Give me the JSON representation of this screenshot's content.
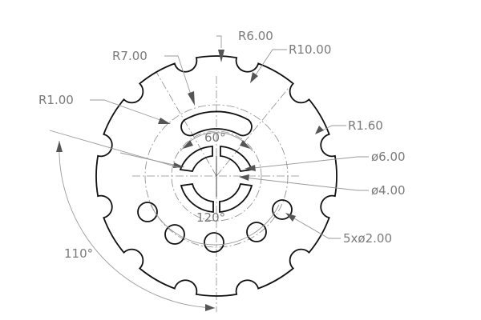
{
  "drawing": {
    "labels": {
      "r6": "R6.00",
      "r7": "R7.00",
      "r10": "R10.00",
      "r1": "R1.00",
      "r160": "R1.60",
      "ang60": "60°",
      "dia6": "ø6.00",
      "dia4": "ø4.00",
      "ang120": "120°",
      "holes": "5xø2.00",
      "ang110": "110°"
    },
    "colors": {
      "outline": "#111111",
      "dimension": "#9a9a9a",
      "text": "#7a7a7a"
    }
  }
}
